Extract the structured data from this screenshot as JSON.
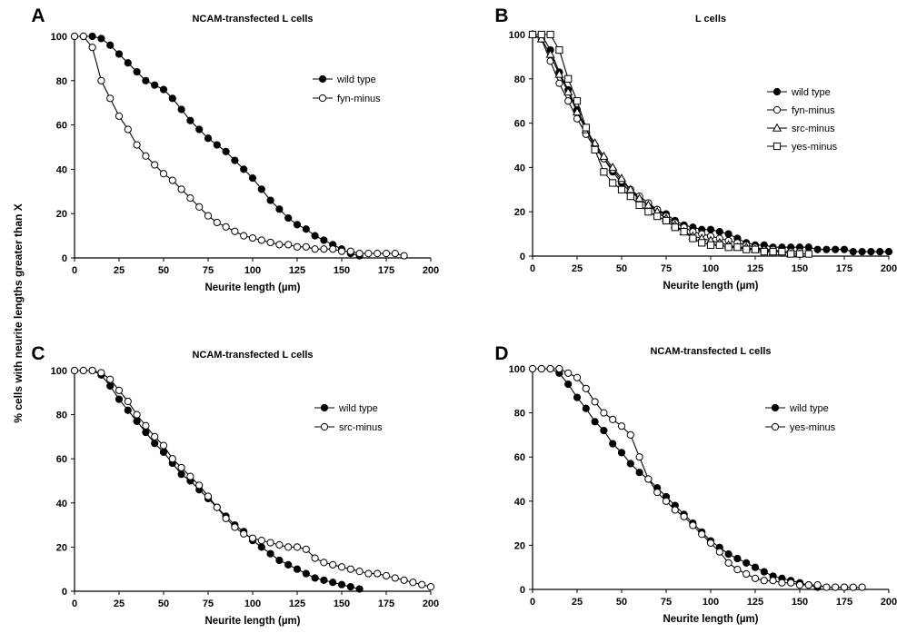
{
  "figure": {
    "ylabel": "% cells with neurite lengths greater than X"
  },
  "chart_data": [
    {
      "panel": "A",
      "type": "line",
      "title": "NCAM-transfected L cells",
      "xlabel": "Neurite length (µm)",
      "xlim": [
        0,
        200
      ],
      "ylim": [
        0,
        100
      ],
      "xticks": [
        0,
        25,
        50,
        75,
        100,
        125,
        150,
        175,
        200
      ],
      "yticks": [
        0,
        20,
        40,
        60,
        80,
        100
      ],
      "legend_position": "top-right",
      "series": [
        {
          "name": "wild type",
          "marker": "filled-circle",
          "x": [
            0,
            5,
            10,
            15,
            20,
            25,
            30,
            35,
            40,
            45,
            50,
            55,
            60,
            65,
            70,
            75,
            80,
            85,
            90,
            95,
            100,
            105,
            110,
            115,
            120,
            125,
            130,
            135,
            140,
            145,
            150,
            155,
            160
          ],
          "y": [
            100,
            100,
            100,
            99,
            96,
            92,
            88,
            84,
            80,
            78,
            76,
            72,
            67,
            62,
            58,
            54,
            51,
            48,
            44,
            40,
            36,
            31,
            26,
            22,
            18,
            15,
            13,
            10,
            8,
            6,
            4,
            2,
            1
          ]
        },
        {
          "name": "fyn-minus",
          "marker": "open-circle",
          "x": [
            0,
            5,
            10,
            15,
            20,
            25,
            30,
            35,
            40,
            45,
            50,
            55,
            60,
            65,
            70,
            75,
            80,
            85,
            90,
            95,
            100,
            105,
            110,
            115,
            120,
            125,
            130,
            135,
            140,
            145,
            150,
            155,
            160,
            165,
            170,
            175,
            180,
            185
          ],
          "y": [
            100,
            100,
            95,
            80,
            72,
            64,
            58,
            51,
            46,
            42,
            38,
            35,
            31,
            27,
            23,
            19,
            16,
            14,
            12,
            10,
            9,
            8,
            7,
            6,
            6,
            5,
            5,
            4,
            4,
            4,
            3,
            3,
            2,
            2,
            2,
            2,
            2,
            1
          ]
        }
      ]
    },
    {
      "panel": "B",
      "type": "line",
      "title": "L cells",
      "xlabel": "Neurite length (µm)",
      "xlim": [
        0,
        200
      ],
      "ylim": [
        0,
        100
      ],
      "xticks": [
        0,
        25,
        50,
        75,
        100,
        125,
        150,
        175,
        200
      ],
      "yticks": [
        0,
        20,
        40,
        60,
        80,
        100
      ],
      "legend_position": "top-right",
      "series": [
        {
          "name": "wild type",
          "marker": "filled-circle",
          "x": [
            0,
            5,
            10,
            15,
            20,
            25,
            30,
            35,
            40,
            45,
            50,
            55,
            60,
            65,
            70,
            75,
            80,
            85,
            90,
            95,
            100,
            105,
            110,
            115,
            120,
            125,
            130,
            135,
            140,
            145,
            150,
            155,
            160,
            165,
            170,
            175,
            180,
            185,
            190,
            195,
            200
          ],
          "y": [
            100,
            100,
            93,
            83,
            75,
            66,
            58,
            50,
            44,
            38,
            33,
            29,
            26,
            23,
            21,
            19,
            16,
            14,
            13,
            12,
            12,
            11,
            10,
            8,
            6,
            5,
            5,
            4,
            4,
            4,
            4,
            4,
            3,
            3,
            3,
            3,
            2,
            2,
            2,
            2,
            2
          ]
        },
        {
          "name": "fyn-minus",
          "marker": "open-circle",
          "x": [
            0,
            5,
            10,
            15,
            20,
            25,
            30,
            35,
            40,
            45,
            50,
            55,
            60,
            65,
            70,
            75,
            80,
            85,
            90,
            95,
            100,
            105,
            110,
            115,
            120,
            125,
            130,
            135,
            140,
            145,
            150
          ],
          "y": [
            100,
            98,
            88,
            78,
            70,
            62,
            55,
            49,
            44,
            39,
            34,
            30,
            27,
            24,
            21,
            18,
            15,
            13,
            11,
            10,
            9,
            8,
            7,
            6,
            5,
            4,
            3,
            3,
            2,
            2,
            2
          ]
        },
        {
          "name": "src-minus",
          "marker": "open-triangle",
          "x": [
            0,
            5,
            10,
            15,
            20,
            25,
            30,
            35,
            40,
            45,
            50,
            55,
            60,
            65,
            70,
            75,
            80,
            85,
            90,
            95,
            100,
            105,
            110,
            115,
            120,
            125,
            130,
            135,
            140,
            145,
            150
          ],
          "y": [
            100,
            98,
            91,
            82,
            74,
            65,
            57,
            51,
            45,
            40,
            35,
            30,
            26,
            23,
            20,
            17,
            14,
            11,
            9,
            8,
            7,
            6,
            5,
            4,
            4,
            3,
            3,
            2,
            2,
            1,
            1
          ]
        },
        {
          "name": "yes-minus",
          "marker": "open-square",
          "x": [
            0,
            5,
            10,
            15,
            20,
            25,
            30,
            35,
            40,
            45,
            50,
            55,
            60,
            65,
            70,
            75,
            80,
            85,
            90,
            95,
            100,
            105,
            110,
            115,
            120,
            125,
            130,
            135,
            140,
            145,
            150,
            155
          ],
          "y": [
            100,
            100,
            100,
            93,
            80,
            70,
            58,
            48,
            38,
            33,
            30,
            27,
            23,
            20,
            18,
            16,
            13,
            11,
            8,
            6,
            5,
            5,
            4,
            4,
            3,
            3,
            2,
            2,
            2,
            1,
            1,
            1
          ]
        }
      ]
    },
    {
      "panel": "C",
      "type": "line",
      "title": "NCAM-transfected L cells",
      "xlabel": "Neurite length (µm)",
      "xlim": [
        0,
        200
      ],
      "ylim": [
        0,
        100
      ],
      "xticks": [
        0,
        25,
        50,
        75,
        100,
        125,
        150,
        175,
        200
      ],
      "yticks": [
        0,
        20,
        40,
        60,
        80,
        100
      ],
      "legend_position": "top-right",
      "series": [
        {
          "name": "wild type",
          "marker": "filled-circle",
          "x": [
            0,
            5,
            10,
            15,
            20,
            25,
            30,
            35,
            40,
            45,
            50,
            55,
            60,
            65,
            70,
            75,
            80,
            85,
            90,
            95,
            100,
            105,
            110,
            115,
            120,
            125,
            130,
            135,
            140,
            145,
            150,
            155,
            160
          ],
          "y": [
            100,
            100,
            100,
            98,
            93,
            87,
            82,
            77,
            72,
            67,
            63,
            58,
            53,
            50,
            46,
            42,
            38,
            34,
            30,
            27,
            23,
            20,
            17,
            14,
            12,
            10,
            8,
            6,
            5,
            4,
            3,
            2,
            1
          ]
        },
        {
          "name": "src-minus",
          "marker": "open-circle",
          "x": [
            0,
            5,
            10,
            15,
            20,
            25,
            30,
            35,
            40,
            45,
            50,
            55,
            60,
            65,
            70,
            75,
            80,
            85,
            90,
            95,
            100,
            105,
            110,
            115,
            120,
            125,
            130,
            135,
            140,
            145,
            150,
            155,
            160,
            165,
            170,
            175,
            180,
            185,
            190,
            195,
            200
          ],
          "y": [
            100,
            100,
            100,
            99,
            96,
            91,
            86,
            80,
            75,
            70,
            66,
            60,
            56,
            52,
            48,
            43,
            38,
            33,
            29,
            26,
            24,
            23,
            22,
            21,
            20,
            20,
            19,
            15,
            13,
            12,
            11,
            10,
            9,
            8,
            8,
            7,
            6,
            5,
            4,
            3,
            2
          ]
        }
      ]
    },
    {
      "panel": "D",
      "type": "line",
      "title": "NCAM-transfected L cells",
      "xlabel": "Neurite length (µm)",
      "xlim": [
        0,
        200
      ],
      "ylim": [
        0,
        100
      ],
      "xticks": [
        0,
        25,
        50,
        75,
        100,
        125,
        150,
        175,
        200
      ],
      "yticks": [
        0,
        20,
        40,
        60,
        80,
        100
      ],
      "legend_position": "top-right",
      "series": [
        {
          "name": "wild type",
          "marker": "filled-circle",
          "x": [
            0,
            5,
            10,
            15,
            20,
            25,
            30,
            35,
            40,
            45,
            50,
            55,
            60,
            65,
            70,
            75,
            80,
            85,
            90,
            95,
            100,
            105,
            110,
            115,
            120,
            125,
            130,
            135,
            140,
            145,
            150,
            155,
            160
          ],
          "y": [
            100,
            100,
            100,
            98,
            93,
            87,
            82,
            76,
            72,
            66,
            62,
            57,
            53,
            50,
            46,
            42,
            38,
            34,
            30,
            26,
            22,
            19,
            16,
            14,
            12,
            10,
            8,
            6,
            5,
            4,
            3,
            2,
            1
          ]
        },
        {
          "name": "yes-minus",
          "marker": "open-circle",
          "x": [
            0,
            5,
            10,
            15,
            20,
            25,
            30,
            35,
            40,
            45,
            50,
            55,
            60,
            65,
            70,
            75,
            80,
            85,
            90,
            95,
            100,
            105,
            110,
            115,
            120,
            125,
            130,
            135,
            140,
            145,
            150,
            155,
            160,
            165,
            170,
            175,
            180,
            185
          ],
          "y": [
            100,
            100,
            100,
            100,
            98,
            96,
            91,
            85,
            80,
            77,
            74,
            70,
            60,
            50,
            44,
            40,
            36,
            33,
            29,
            25,
            21,
            17,
            12,
            9,
            7,
            5,
            4,
            4,
            3,
            3,
            2,
            2,
            2,
            1,
            1,
            1,
            1,
            1
          ]
        }
      ]
    }
  ]
}
